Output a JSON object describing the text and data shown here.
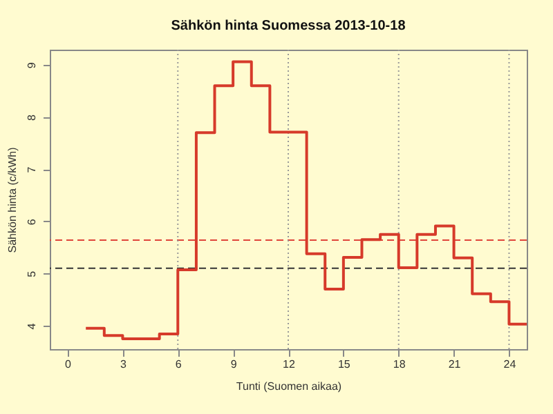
{
  "chart_data": {
    "type": "step",
    "title": "Sähkön hinta Suomessa 2013-10-18",
    "xlabel": "Tunti (Suomen aikaa)",
    "ylabel": "Sähkön hinta (c/kWh)",
    "x": [
      1,
      2,
      3,
      4,
      5,
      6,
      7,
      8,
      9,
      10,
      11,
      12,
      13,
      14,
      15,
      16,
      17,
      18,
      19,
      20,
      21,
      22,
      23,
      24,
      24.96
    ],
    "series": [
      {
        "color": "#d63a2a",
        "line_style": "solid",
        "values": [
          3.95,
          3.81,
          3.75,
          3.75,
          3.84,
          5.07,
          7.7,
          8.6,
          9.06,
          8.6,
          7.71,
          7.71,
          5.38,
          4.7,
          5.31,
          5.65,
          5.75,
          5.11,
          5.75,
          5.91,
          5.3,
          4.61,
          4.46,
          4.03,
          4.03
        ]
      }
    ],
    "xlim": [
      -0.96,
      24.96
    ],
    "xticks": [
      0,
      3,
      6,
      9,
      12,
      15,
      18,
      21,
      24
    ],
    "ylim": [
      3.55,
      9.29
    ],
    "yticks": [
      4,
      5,
      6,
      7,
      8,
      9
    ],
    "grid": false,
    "ref_lines": [
      {
        "axis": "y",
        "value": 5.64,
        "color": "#e0453a",
        "line_style": "dashed"
      },
      {
        "axis": "y",
        "value": 5.1,
        "color": "#333333",
        "line_style": "dashed"
      },
      {
        "axis": "x",
        "value": 6,
        "color": "#999999",
        "line_style": "dotted"
      },
      {
        "axis": "x",
        "value": 12,
        "color": "#999999",
        "line_style": "dotted"
      },
      {
        "axis": "x",
        "value": 18,
        "color": "#999999",
        "line_style": "dotted"
      },
      {
        "axis": "x",
        "value": 24,
        "color": "#999999",
        "line_style": "dotted"
      }
    ]
  }
}
